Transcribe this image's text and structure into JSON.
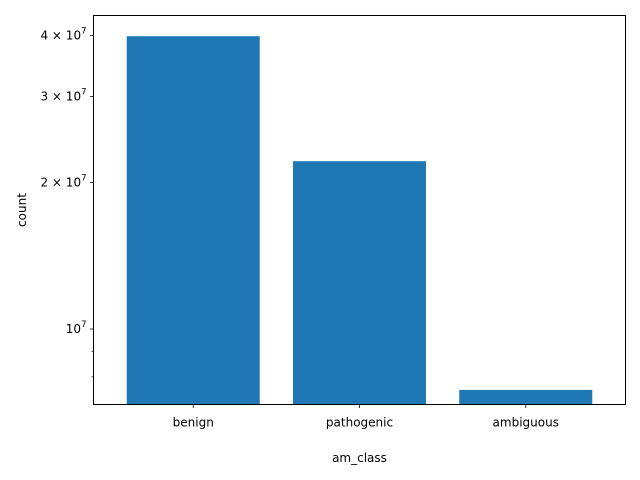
{
  "chart_data": {
    "type": "bar",
    "categories": [
      "benign",
      "pathogenic",
      "ambiguous"
    ],
    "values": [
      39900000,
      22100000,
      7500000
    ],
    "xlabel": "am_class",
    "ylabel": "count",
    "yscale": "log",
    "ylim": [
      7000000,
      44000000
    ],
    "major_ticks": [
      {
        "value": 10000000,
        "base": "10",
        "exp": "7"
      },
      {
        "value": 20000000,
        "base": "2 × 10",
        "exp": "7"
      },
      {
        "value": 30000000,
        "base": "3 × 10",
        "exp": "7"
      },
      {
        "value": 40000000,
        "base": "4 × 10",
        "exp": "7"
      }
    ],
    "minor_ticks": [
      8000000,
      9000000
    ],
    "bar_color": "#1f77b4",
    "grid": false
  }
}
